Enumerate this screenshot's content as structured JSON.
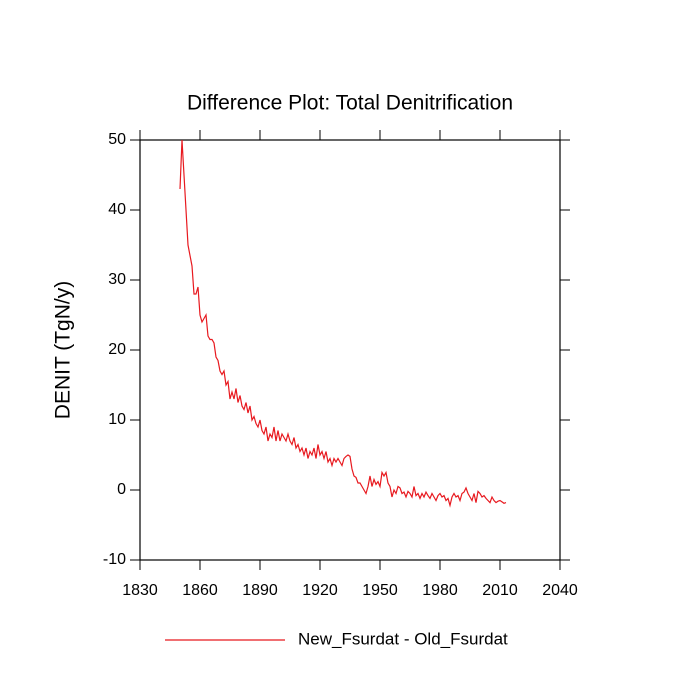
{
  "chart_data": {
    "type": "line",
    "title": "Difference Plot: Total Denitrification",
    "y_label": "DENIT  (TgN/y)",
    "x": [
      1850,
      1851,
      1852,
      1853,
      1854,
      1855,
      1856,
      1857,
      1858,
      1859,
      1860,
      1861,
      1862,
      1863,
      1864,
      1865,
      1866,
      1867,
      1868,
      1869,
      1870,
      1871,
      1872,
      1873,
      1874,
      1875,
      1876,
      1877,
      1878,
      1879,
      1880,
      1881,
      1882,
      1883,
      1884,
      1885,
      1886,
      1887,
      1888,
      1889,
      1890,
      1891,
      1892,
      1893,
      1894,
      1895,
      1896,
      1897,
      1898,
      1899,
      1900,
      1901,
      1902,
      1903,
      1904,
      1905,
      1906,
      1907,
      1908,
      1909,
      1910,
      1911,
      1912,
      1913,
      1914,
      1915,
      1916,
      1917,
      1918,
      1919,
      1920,
      1921,
      1922,
      1923,
      1924,
      1925,
      1926,
      1927,
      1928,
      1929,
      1930,
      1931,
      1932,
      1933,
      1934,
      1935,
      1936,
      1937,
      1938,
      1939,
      1940,
      1941,
      1942,
      1943,
      1944,
      1945,
      1946,
      1947,
      1948,
      1949,
      1950,
      1951,
      1952,
      1953,
      1954,
      1955,
      1956,
      1957,
      1958,
      1959,
      1960,
      1961,
      1962,
      1963,
      1964,
      1965,
      1966,
      1967,
      1968,
      1969,
      1970,
      1971,
      1972,
      1973,
      1974,
      1975,
      1976,
      1977,
      1978,
      1979,
      1980,
      1981,
      1982,
      1983,
      1984,
      1985,
      1986,
      1987,
      1988,
      1989,
      1990,
      1991,
      1992,
      1993,
      1994,
      1995,
      1996,
      1997,
      1998,
      1999,
      2000,
      2001,
      2002,
      2003,
      2004,
      2005,
      2006,
      2007,
      2008,
      2009,
      2010,
      2011,
      2012,
      2013
    ],
    "series": [
      {
        "name": "New_Fsurdat - Old_Fsurdat",
        "color": "#e8191f",
        "values": [
          43,
          50,
          45,
          40,
          35,
          33.5,
          32,
          28,
          28,
          29,
          25,
          24,
          24.5,
          25,
          22,
          21.5,
          21.5,
          21,
          19,
          18.5,
          17,
          16.5,
          17,
          15,
          15.5,
          13,
          14,
          13,
          14.5,
          12.5,
          13.5,
          12,
          11.5,
          12.5,
          11,
          12,
          10,
          10.5,
          9.5,
          9,
          10,
          8.5,
          8,
          9,
          7,
          8,
          7.5,
          9,
          7,
          8.5,
          7,
          8,
          7.5,
          7,
          8,
          7,
          6.5,
          7.5,
          6,
          6.5,
          5.5,
          6,
          5,
          6,
          4.5,
          5.5,
          5,
          6,
          4.5,
          6.5,
          5,
          5.5,
          4.5,
          5.5,
          4,
          4.5,
          3.5,
          4.5,
          4,
          4.5,
          4,
          3.5,
          4.5,
          4.8,
          5,
          4.8,
          3,
          2,
          1.8,
          1,
          1,
          0.5,
          0,
          -0.5,
          0.5,
          2,
          0.5,
          1.5,
          0.8,
          1.2,
          0.5,
          2.5,
          2,
          2.5,
          1,
          0.5,
          -1,
          0,
          -0.5,
          0.5,
          0.3,
          -0.5,
          -0.3,
          -1,
          -0.2,
          -0.5,
          -1,
          0.5,
          -0.8,
          -0.5,
          -1.2,
          -0.5,
          -1,
          -0.3,
          -0.8,
          -1.2,
          -0.5,
          -1,
          -1.5,
          -0.8,
          -0.5,
          -1,
          -0.8,
          -1.5,
          -1.2,
          -2.2,
          -1,
          -0.5,
          -1,
          -0.8,
          -1.5,
          -0.5,
          -0.3,
          0.3,
          -0.5,
          -1,
          -1.5,
          -0.5,
          -1.8,
          -0.2,
          -0.5,
          -1,
          -0.8,
          -1.2,
          -1.5,
          -1.8,
          -1,
          -1.5,
          -1.8,
          -1.6,
          -1.5,
          -1.7,
          -1.9,
          -1.8
        ]
      }
    ],
    "xlim": [
      1830,
      2040
    ],
    "xticks": [
      1830,
      1860,
      1890,
      1920,
      1950,
      1980,
      2010,
      2040
    ],
    "ylim": [
      -10,
      50
    ],
    "yticks": [
      -10,
      0,
      10,
      20,
      30,
      40,
      50
    ],
    "legend": "bottom",
    "grid": false
  }
}
